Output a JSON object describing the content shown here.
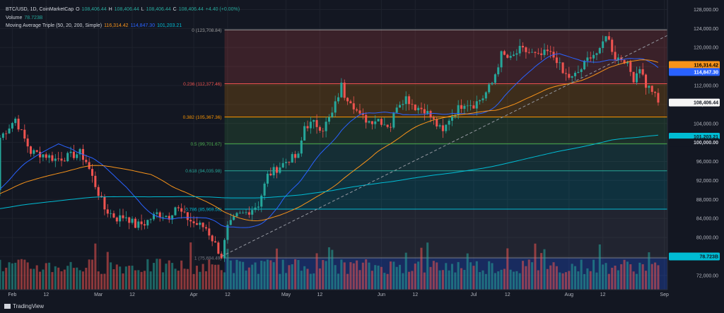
{
  "header": {
    "symbol": "BTC/USD, 1D, CoinMarketCap",
    "o_label": "O",
    "open": "108,406.44",
    "h_label": "H",
    "high": "108,406.44",
    "l_label": "L",
    "low": "108,406.44",
    "c_label": "C",
    "close": "108,406.44",
    "change": "+4.40 (+0.00%)",
    "volume_label": "Volume",
    "volume_value": "78.723B",
    "ma_label": "Moving Average Triple (50, 20, 200, Simple)",
    "ma50": "116,314.42",
    "ma20": "114,847.30",
    "ma200": "101,203.21"
  },
  "footer": {
    "brand": "TradingView"
  },
  "colors": {
    "background": "#131722",
    "up": "#26a69a",
    "down": "#ef5350",
    "ma50": "#f7931a",
    "ma20": "#2962ff",
    "ma200": "#00bcd4",
    "price_label": "#f5f5f5",
    "volume_badge": "#00bcd4"
  },
  "chart_data": {
    "type": "candlestick",
    "symbol": "BTC/USD",
    "interval": "1D",
    "y_axis": {
      "ticks": [
        72000,
        76000,
        80000,
        84000,
        88000,
        92000,
        96000,
        100000,
        104000,
        108000,
        112000,
        116000,
        120000,
        124000,
        128000
      ],
      "tick_labels": [
        "72,000.00",
        "76,000.00",
        "80,000.00",
        "84,000.00",
        "88,000.00",
        "92,000.00",
        "96,000.00",
        "100,000.00",
        "104,000.00",
        "108,000.00",
        "112,000.00",
        "116,000.00",
        "120,000.00",
        "124,000.00",
        "128,000.00"
      ],
      "range": [
        69000,
        130000
      ]
    },
    "x_axis": {
      "ticks": [
        {
          "day": 0,
          "label": "Feb"
        },
        {
          "day": 11,
          "label": "12"
        },
        {
          "day": 28,
          "label": "Mar"
        },
        {
          "day": 39,
          "label": "12"
        },
        {
          "day": 59,
          "label": "Apr"
        },
        {
          "day": 70,
          "label": "12"
        },
        {
          "day": 89,
          "label": "May"
        },
        {
          "day": 100,
          "label": "12"
        },
        {
          "day": 120,
          "label": "Jun"
        },
        {
          "day": 131,
          "label": "12"
        },
        {
          "day": 150,
          "label": "Jul"
        },
        {
          "day": 161,
          "label": "12"
        },
        {
          "day": 181,
          "label": "Aug"
        },
        {
          "day": 192,
          "label": "12"
        },
        {
          "day": 212,
          "label": "Sep"
        }
      ],
      "range": [
        -4,
        213
      ]
    },
    "anchors": [
      [
        -4,
        101000
      ],
      [
        1,
        105000
      ],
      [
        3,
        102000
      ],
      [
        6,
        98000
      ],
      [
        10,
        97500
      ],
      [
        14,
        96500
      ],
      [
        18,
        97000
      ],
      [
        22,
        97800
      ],
      [
        24,
        96000
      ],
      [
        27,
        91000
      ],
      [
        30,
        86000
      ],
      [
        34,
        84000
      ],
      [
        37,
        84500
      ],
      [
        40,
        82500
      ],
      [
        43,
        83000
      ],
      [
        47,
        85000
      ],
      [
        51,
        84500
      ],
      [
        53,
        86500
      ],
      [
        56,
        84500
      ],
      [
        59,
        83000
      ],
      [
        63,
        82000
      ],
      [
        66,
        78500
      ],
      [
        68,
        76000
      ],
      [
        70,
        82000
      ],
      [
        73,
        84500
      ],
      [
        76,
        85200
      ],
      [
        80,
        87000
      ],
      [
        83,
        93000
      ],
      [
        86,
        94500
      ],
      [
        90,
        96500
      ],
      [
        93,
        97000
      ],
      [
        95,
        103500
      ],
      [
        98,
        104000
      ],
      [
        101,
        103000
      ],
      [
        104,
        106000
      ],
      [
        107,
        112000
      ],
      [
        108,
        110000
      ],
      [
        110,
        109000
      ],
      [
        113,
        105500
      ],
      [
        116,
        104500
      ],
      [
        119,
        105000
      ],
      [
        121,
        104000
      ],
      [
        123,
        103500
      ],
      [
        125,
        108000
      ],
      [
        128,
        109500
      ],
      [
        131,
        107500
      ],
      [
        134,
        107000
      ],
      [
        137,
        104500
      ],
      [
        140,
        102000
      ],
      [
        142,
        105000
      ],
      [
        144,
        106500
      ],
      [
        147,
        108500
      ],
      [
        150,
        108000
      ],
      [
        153,
        109500
      ],
      [
        156,
        112500
      ],
      [
        159,
        118500
      ],
      [
        162,
        117500
      ],
      [
        165,
        119500
      ],
      [
        168,
        119000
      ],
      [
        171,
        118000
      ],
      [
        174,
        119000
      ],
      [
        177,
        117500
      ],
      [
        179,
        114500
      ],
      [
        182,
        113500
      ],
      [
        185,
        115500
      ],
      [
        188,
        118500
      ],
      [
        191,
        119000
      ],
      [
        193,
        123000
      ],
      [
        196,
        118000
      ],
      [
        199,
        117500
      ],
      [
        202,
        113500
      ],
      [
        204,
        116000
      ],
      [
        206,
        112000
      ],
      [
        208,
        111000
      ],
      [
        210,
        108406
      ]
    ],
    "fibonacci": {
      "start_day": 69,
      "end_day": 216,
      "levels": [
        {
          "ratio": 0,
          "label": "0 (123,708.84)",
          "price": 123708.84,
          "color": "#9e9e9e",
          "fill": "rgba(239,83,80,0.18)"
        },
        {
          "ratio": 0.236,
          "label": "0.236 (112,377.46)",
          "price": 112377.46,
          "color": "#ef5350",
          "fill": "rgba(255,152,0,0.18)"
        },
        {
          "ratio": 0.382,
          "label": "0.382 (105,367.36)",
          "price": 105367.36,
          "color": "#ff9800",
          "fill": "rgba(76,175,80,0.16)"
        },
        {
          "ratio": 0.5,
          "label": "0.5 (99,701.67)",
          "price": 99701.67,
          "color": "#4caf50",
          "fill": "rgba(38,166,154,0.16)"
        },
        {
          "ratio": 0.618,
          "label": "0.618 (94,035.98)",
          "price": 94035.98,
          "color": "#26a69a",
          "fill": "rgba(0,188,212,0.16)"
        },
        {
          "ratio": 0.786,
          "label": "0.786 (85,969.56)",
          "price": 85969.56,
          "color": "#00bcd4",
          "fill": "rgba(120,123,134,0.14)"
        },
        {
          "ratio": 1,
          "label": "1 (75,694.49)",
          "price": 75694.49,
          "color": "#787b86",
          "fill": "rgba(41,98,255,0.28)"
        }
      ]
    },
    "trendline": {
      "from": [
        68,
        76000
      ],
      "to": [
        216,
        123500
      ]
    },
    "price_labels": [
      {
        "id": "ma50",
        "value": "116,314.42",
        "price": 116314.42,
        "color": "#f7931a",
        "text_color": "#000000"
      },
      {
        "id": "ma20",
        "value": "114,847.30",
        "price": 114847.3,
        "color": "#2962ff",
        "text_color": "#ffffff"
      },
      {
        "id": "last",
        "value": "108,406.44",
        "price": 108406.44,
        "color": "#f5f5f5",
        "text_color": "#131722"
      },
      {
        "id": "ma200",
        "value": "101,203.21",
        "price": 101203.21,
        "color": "#00bcd4",
        "text_color": "#131722"
      },
      {
        "id": "ma200-sub",
        "value": "100,000.00",
        "price": 100000,
        "color": "#131722",
        "text_color": "#d1d4dc"
      }
    ],
    "volume_badge": {
      "value": "78.723B",
      "price": 76000,
      "color": "#00bcd4"
    },
    "volume": {
      "last": "78.723B"
    }
  }
}
